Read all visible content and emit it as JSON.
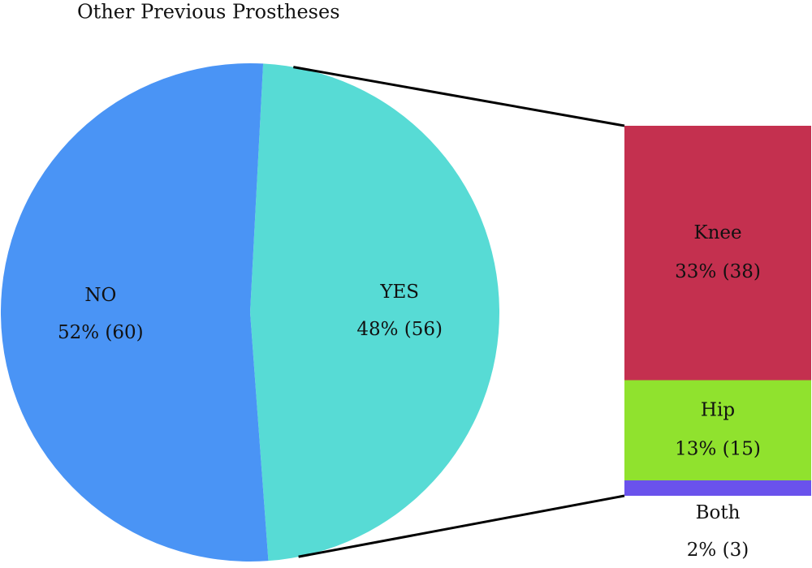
{
  "chart_data": [
    {
      "type": "pie",
      "title": "Other Previous Prostheses",
      "categories": [
        "NO",
        "YES"
      ],
      "values": [
        52,
        48
      ],
      "value_labels": [
        "52% (60)",
        "48% (56)"
      ],
      "colors": [
        "#4a94f5",
        "#57dbd5"
      ]
    },
    {
      "type": "bar",
      "categories": [
        "Knee",
        "Hip",
        "Both"
      ],
      "values": [
        33,
        13,
        2
      ],
      "value_labels": [
        "33% (38)",
        "13% (15)",
        "2% (3)"
      ],
      "colors": [
        "#c4304f",
        "#90e22e",
        "#6a52ec"
      ]
    }
  ]
}
